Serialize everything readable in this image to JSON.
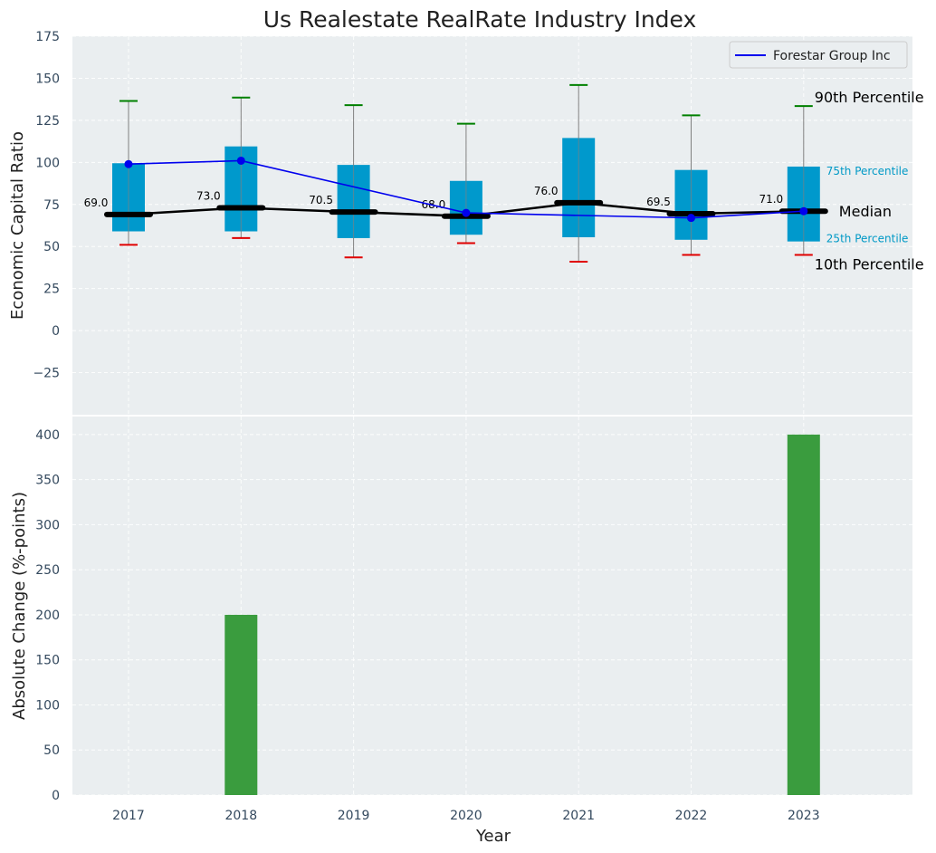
{
  "title": "Us Realestate RealRate Industry Index",
  "colors": {
    "panel_bg": "#eaeef0",
    "box": "#0099cc",
    "whisker": "#808080",
    "upper_cap": "#008000",
    "lower_cap": "#e00000",
    "median": "#000000",
    "company": "#0000ee",
    "bars": "#3a9c3e"
  },
  "chart_data": [
    {
      "type": "box",
      "ylabel": "Economic Capital Ratio",
      "ylim": [
        -50,
        175
      ],
      "yticks": [
        -25,
        0,
        25,
        50,
        75,
        100,
        125,
        150,
        175
      ],
      "ytick_labels": [
        "−25",
        "0",
        "25",
        "50",
        "75",
        "100",
        "125",
        "150",
        "175"
      ],
      "categories": [
        "2017",
        "2018",
        "2019",
        "2020",
        "2021",
        "2022",
        "2023"
      ],
      "p10": [
        51,
        55,
        43.5,
        52,
        41,
        45,
        45
      ],
      "p25": [
        59,
        59,
        55,
        57,
        55.5,
        54,
        53
      ],
      "median": [
        69,
        73,
        70.5,
        68,
        76,
        69.5,
        71
      ],
      "median_labels": [
        "69.0",
        "73.0",
        "70.5",
        "68.0",
        "76.0",
        "69.5",
        "71.0"
      ],
      "p75": [
        99.5,
        109.5,
        98.5,
        89,
        114.5,
        95.5,
        97.5
      ],
      "p90": [
        136.5,
        138.5,
        134,
        123,
        146,
        128,
        133.5
      ],
      "series": [
        {
          "name": "Forestar Group Inc",
          "values": [
            99,
            101,
            null,
            70,
            null,
            67,
            71
          ]
        }
      ],
      "percentile_labels": {
        "p90": "90th Percentile",
        "p75": "75th Percentile",
        "median": "Median",
        "p25": "25th Percentile",
        "p10": "10th Percentile"
      },
      "legend_position": "top-right",
      "grid": true
    },
    {
      "type": "bar",
      "ylabel": "Absolute Change (%-points)",
      "xlabel": "Year",
      "ylim": [
        0,
        420
      ],
      "yticks": [
        0,
        50,
        100,
        150,
        200,
        250,
        300,
        350,
        400
      ],
      "categories": [
        "2017",
        "2018",
        "2019",
        "2020",
        "2021",
        "2022",
        "2023"
      ],
      "values": [
        0,
        200,
        0,
        0,
        0,
        0,
        400
      ],
      "grid": true
    }
  ]
}
